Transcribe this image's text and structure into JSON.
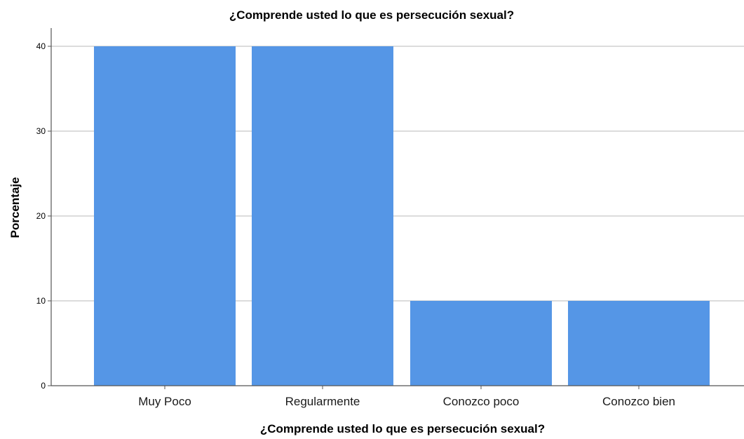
{
  "chart_data": {
    "type": "bar",
    "title": "¿Comprende usted lo que es persecución sexual?",
    "xlabel": "¿Comprende usted lo que es persecución sexual?",
    "ylabel": "Porcentaje",
    "categories": [
      "Muy Poco",
      "Regularmente",
      "Conozco poco",
      "Conozco bien"
    ],
    "values": [
      40,
      40,
      10,
      10
    ],
    "ylim": [
      0,
      42
    ],
    "yticks": [
      0,
      10,
      20,
      30,
      40
    ],
    "grid": "horizontal",
    "legend": "none",
    "bar_color": "#5596e6",
    "grid_color": "#c8c8c8",
    "axis_color": "#555555"
  }
}
